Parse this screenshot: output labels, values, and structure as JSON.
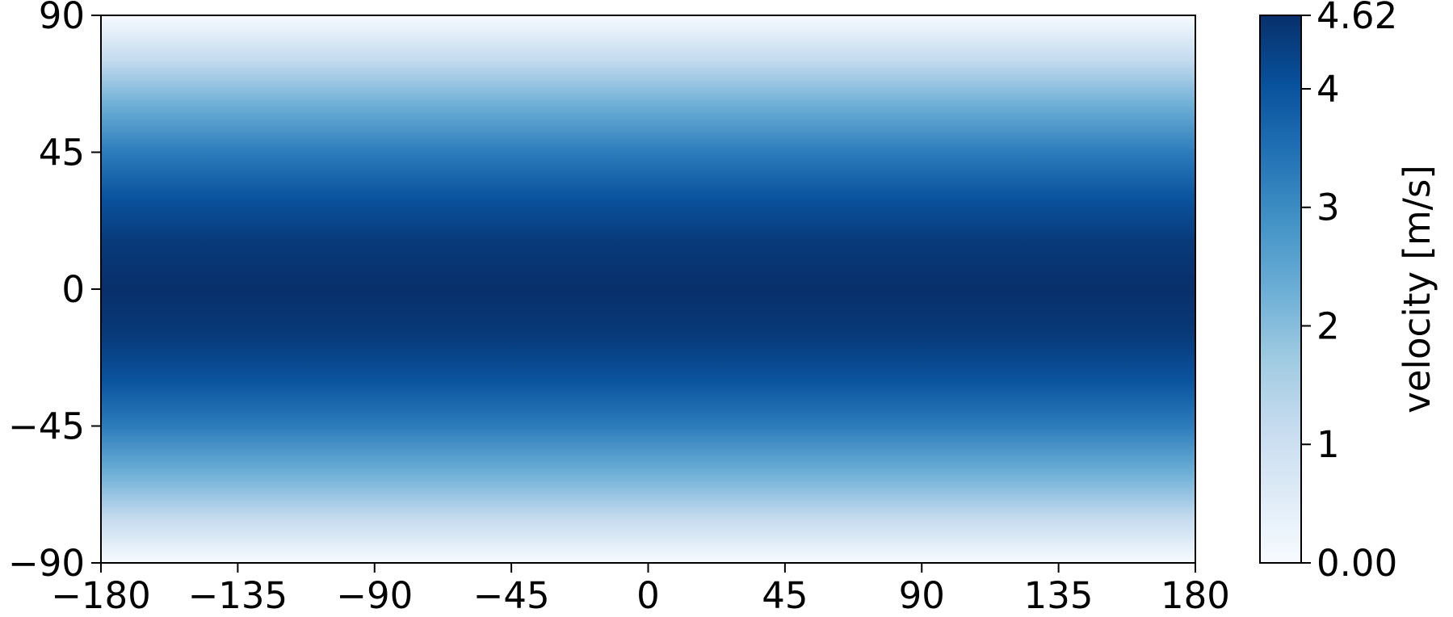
{
  "chart_data": {
    "type": "heatmap",
    "title": "",
    "xlabel": "",
    "ylabel": "",
    "xlim": [
      -180,
      180
    ],
    "ylim": [
      -90,
      90
    ],
    "x_ticks": [
      -180,
      -135,
      -90,
      -45,
      0,
      45,
      90,
      135,
      180
    ],
    "x_tick_labels": [
      "−180",
      "−135",
      "−90",
      "−45",
      "0",
      "45",
      "90",
      "135",
      "180"
    ],
    "y_ticks": [
      -90,
      -45,
      0,
      45,
      90
    ],
    "y_tick_labels": [
      "−90",
      "−45",
      "0",
      "45",
      "90"
    ],
    "field": {
      "description": "zonally uniform velocity magnitude, maximum at equator, decreasing to zero at poles",
      "latitude": [
        -90,
        -75,
        -60,
        -45,
        -30,
        -15,
        0,
        15,
        30,
        45,
        60,
        75,
        90
      ],
      "velocity": [
        0.0,
        1.2,
        2.31,
        3.27,
        4.0,
        4.46,
        4.62,
        4.46,
        4.0,
        3.27,
        2.31,
        1.2,
        0.0
      ]
    },
    "colorbar": {
      "label": "velocity [m/s]",
      "colormap": "Blues",
      "vmin": 0.0,
      "vmax": 4.62,
      "ticks": [
        0.0,
        1,
        2,
        3,
        4,
        4.62
      ],
      "tick_labels": [
        "0.00",
        "1",
        "2",
        "3",
        "4",
        "4.62"
      ]
    },
    "colormap_stops": [
      {
        "t": 0.0,
        "color": "#f7fbff"
      },
      {
        "t": 0.125,
        "color": "#deebf7"
      },
      {
        "t": 0.25,
        "color": "#c6dbef"
      },
      {
        "t": 0.375,
        "color": "#9ecae1"
      },
      {
        "t": 0.5,
        "color": "#6baed6"
      },
      {
        "t": 0.625,
        "color": "#4292c6"
      },
      {
        "t": 0.75,
        "color": "#2171b5"
      },
      {
        "t": 0.875,
        "color": "#08519c"
      },
      {
        "t": 1.0,
        "color": "#08306b"
      }
    ]
  }
}
